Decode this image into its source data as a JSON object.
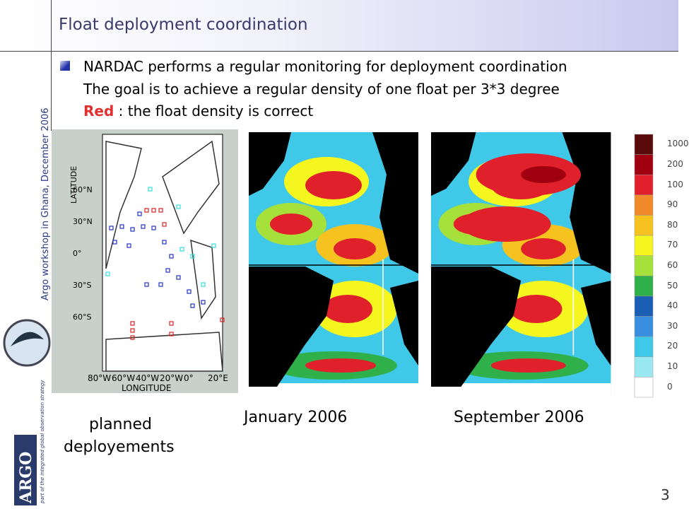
{
  "header": {
    "title": "Float deployment coordination"
  },
  "sidebar": "Argo workshop in Ghana, December 2006",
  "bullets": {
    "line1": "NARDAC performs a regular monitoring for deployment coordination",
    "line2": "The goal is to achieve a regular density of one float per 3*3 degree",
    "line3_highlight": "Red",
    "line3_rest": " : the float density is correct"
  },
  "planned_map": {
    "latitude_label": "LATITUDE",
    "longitude_label": "LONGITUDE",
    "lat_ticks": [
      "60°N",
      "30°N",
      "0°",
      "30°S",
      "60°S"
    ],
    "lon_ticks": [
      "80°W",
      "60°W",
      "40°W",
      "20°W",
      "0°",
      "20°E"
    ]
  },
  "captions": {
    "planned_1": "planned",
    "planned_2": "deployements",
    "january": "January 2006",
    "september": "September 2006"
  },
  "colorbar": [
    {
      "label": "1000",
      "color": "#5a0a0a"
    },
    {
      "label": "200",
      "color": "#a00010"
    },
    {
      "label": "100",
      "color": "#e0202a"
    },
    {
      "label": "90",
      "color": "#f08a2a"
    },
    {
      "label": "80",
      "color": "#f5c21f"
    },
    {
      "label": "70",
      "color": "#f5f51f"
    },
    {
      "label": "60",
      "color": "#a6e03a"
    },
    {
      "label": "50",
      "color": "#2fb04a"
    },
    {
      "label": "40",
      "color": "#1a5fb4"
    },
    {
      "label": "30",
      "color": "#3a8ee0"
    },
    {
      "label": "20",
      "color": "#40c8e8"
    },
    {
      "label": "10",
      "color": "#9ae8f0"
    },
    {
      "label": "0",
      "color": "#ffffff"
    }
  ],
  "logo": {
    "name": "ARGO",
    "tagline": "part of the integrated global observation strategy"
  },
  "page_number": "3"
}
